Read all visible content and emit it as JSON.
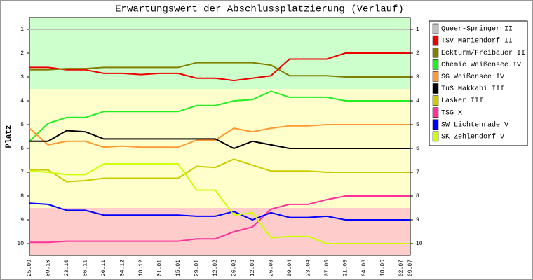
{
  "chart_data": {
    "type": "line",
    "title": "Erwartungswert der Abschlussplatzierung (Verlauf)",
    "y_label": "Platz",
    "x": [
      "25.09",
      "09.10",
      "23.10",
      "06.11",
      "20.11",
      "04.12",
      "18.12",
      "01.01",
      "15.01",
      "29.01",
      "12.02",
      "26.02",
      "12.03",
      "26.03",
      "09.04",
      "23.04",
      "07.05",
      "21.05",
      "04.06",
      "18.06",
      "02.07",
      "09.07"
    ],
    "ylim": [
      0.5,
      10.5
    ],
    "y_inverted": true,
    "yticks": [
      1,
      2,
      3,
      4,
      5,
      6,
      7,
      8,
      9,
      10
    ],
    "bands": [
      {
        "from": 0.5,
        "to": 3.5,
        "color": "#ccffcc"
      },
      {
        "from": 3.5,
        "to": 8.5,
        "color": "#ffffcc"
      },
      {
        "from": 8.5,
        "to": 10.5,
        "color": "#ffcccc"
      }
    ],
    "series": [
      {
        "name": "Queer-Springer II",
        "color": "#c0c0c0",
        "values": [
          1,
          1,
          1,
          1,
          1,
          1,
          1,
          1,
          1,
          1,
          1,
          1,
          1,
          1,
          1,
          1,
          1,
          1,
          1,
          1,
          1,
          1
        ]
      },
      {
        "name": "TSV Mariendorf II",
        "color": "#ee0000",
        "values": [
          2.6,
          2.6,
          2.7,
          2.7,
          2.85,
          2.85,
          2.9,
          2.85,
          2.85,
          3.05,
          3.05,
          3.15,
          3.05,
          2.95,
          2.25,
          2.25,
          2.25,
          2.0,
          2.0,
          2.0,
          2.0,
          2.0
        ]
      },
      {
        "name": "Eckturm/Freibauer II",
        "color": "#808000",
        "values": [
          2.7,
          2.7,
          2.65,
          2.65,
          2.6,
          2.6,
          2.6,
          2.6,
          2.6,
          2.4,
          2.4,
          2.4,
          2.4,
          2.5,
          2.95,
          2.95,
          2.95,
          3.0,
          3.0,
          3.0,
          3.0,
          3.0
        ]
      },
      {
        "name": "Chemie Weißensee IV",
        "color": "#22ee22",
        "values": [
          5.7,
          4.95,
          4.7,
          4.7,
          4.45,
          4.45,
          4.45,
          4.45,
          4.45,
          4.2,
          4.2,
          4.0,
          3.95,
          3.6,
          3.85,
          3.85,
          3.85,
          4.0,
          4.0,
          4.0,
          4.0,
          4.0
        ]
      },
      {
        "name": "SG Weißensee IV",
        "color": "#ff9933",
        "values": [
          5.15,
          5.85,
          5.7,
          5.7,
          5.95,
          5.9,
          5.95,
          5.95,
          5.95,
          5.65,
          5.65,
          5.15,
          5.3,
          5.15,
          5.05,
          5.05,
          5.0,
          5.0,
          5.0,
          5.0,
          5.0,
          5.0
        ]
      },
      {
        "name": "TuS Makkabi III",
        "color": "#000000",
        "values": [
          5.7,
          5.7,
          5.25,
          5.3,
          5.6,
          5.6,
          5.6,
          5.6,
          5.6,
          5.6,
          5.6,
          6.0,
          5.7,
          5.85,
          6.0,
          6.0,
          6.0,
          6.0,
          6.0,
          6.0,
          6.0,
          6.0
        ]
      },
      {
        "name": "Lasker III",
        "color": "#cccc00",
        "values": [
          6.9,
          6.9,
          7.4,
          7.35,
          7.25,
          7.25,
          7.25,
          7.25,
          7.25,
          6.75,
          6.8,
          6.45,
          6.7,
          6.95,
          6.95,
          6.95,
          7.0,
          7.0,
          7.0,
          7.0,
          7.0,
          7.0
        ]
      },
      {
        "name": "TSG X",
        "color": "#ff3399",
        "values": [
          9.95,
          9.95,
          9.9,
          9.9,
          9.9,
          9.9,
          9.9,
          9.9,
          9.9,
          9.8,
          9.8,
          9.5,
          9.3,
          8.55,
          8.35,
          8.35,
          8.15,
          8.0,
          8.0,
          8.0,
          8.0,
          8.0
        ]
      },
      {
        "name": "SW Lichtenrade V",
        "color": "#0000ff",
        "values": [
          8.3,
          8.35,
          8.6,
          8.6,
          8.8,
          8.8,
          8.8,
          8.8,
          8.8,
          8.85,
          8.85,
          8.65,
          9.0,
          8.7,
          8.9,
          8.9,
          8.85,
          9.0,
          9.0,
          9.0,
          9.0,
          9.0
        ]
      },
      {
        "name": "SK Zehlendorf V",
        "color": "#ccff00",
        "values": [
          6.95,
          7.0,
          7.1,
          7.1,
          6.65,
          6.65,
          6.65,
          6.65,
          6.65,
          7.75,
          7.75,
          8.8,
          8.7,
          9.75,
          9.7,
          9.7,
          10.0,
          10.0,
          10.0,
          10.0,
          10.0,
          10.0
        ]
      }
    ]
  }
}
